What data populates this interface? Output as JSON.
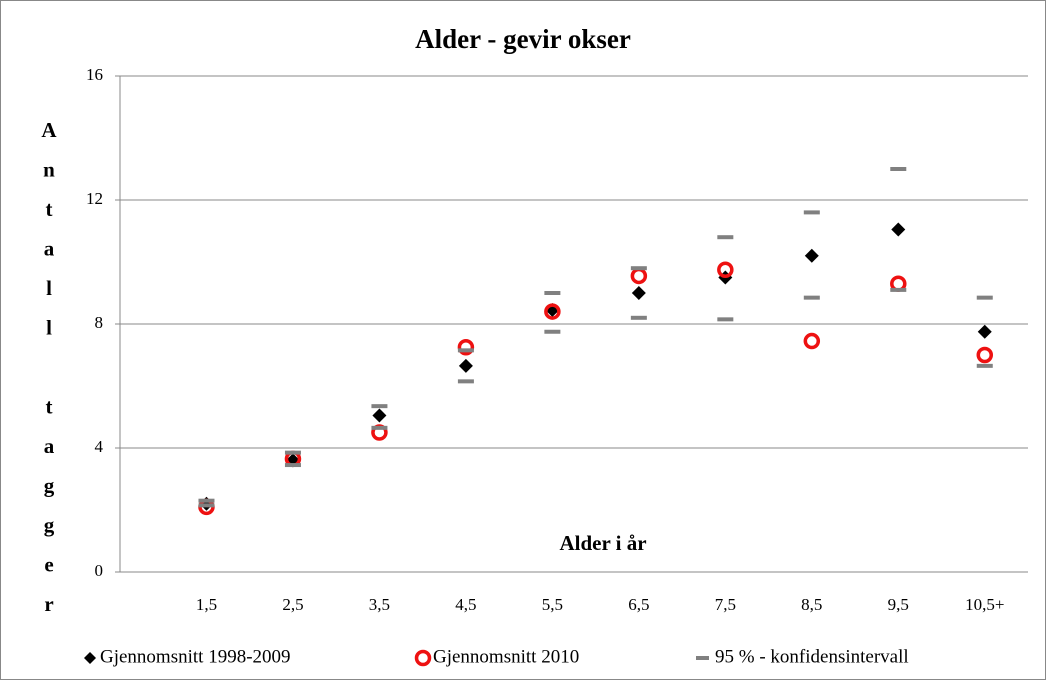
{
  "chart_data": {
    "type": "scatter",
    "title": "Alder - gevir okser",
    "x_label": "Alder i år",
    "y_label": "Antall tagger",
    "categories": [
      "1,5",
      "2,5",
      "3,5",
      "4,5",
      "5,5",
      "6,5",
      "7,5",
      "8,5",
      "9,5",
      "10,5+"
    ],
    "ylim": [
      0,
      16
    ],
    "yticks": [
      0,
      4,
      8,
      12,
      16
    ],
    "grid": true,
    "series": [
      {
        "name": "Gjennomsnitt 1998-2009",
        "color": "#000000",
        "marker": "diamond",
        "values": [
          2.2,
          3.6,
          5.05,
          6.65,
          8.45,
          9.0,
          9.5,
          10.2,
          11.05,
          7.75
        ]
      },
      {
        "name": "Gjennomsnitt 2010",
        "color": "#ee1111",
        "marker": "circle",
        "values": [
          2.1,
          3.65,
          4.5,
          7.25,
          8.4,
          9.55,
          9.75,
          7.45,
          9.3,
          7.0
        ]
      },
      {
        "name": "95 % - konfidensintervall",
        "color": "#808080",
        "marker": "dash",
        "lower": [
          2.15,
          3.45,
          4.65,
          6.15,
          7.75,
          8.2,
          8.15,
          8.85,
          9.1,
          6.65
        ],
        "upper": [
          2.3,
          3.85,
          5.35,
          7.15,
          9.0,
          9.8,
          10.8,
          11.6,
          13.0,
          8.85
        ]
      }
    ]
  }
}
